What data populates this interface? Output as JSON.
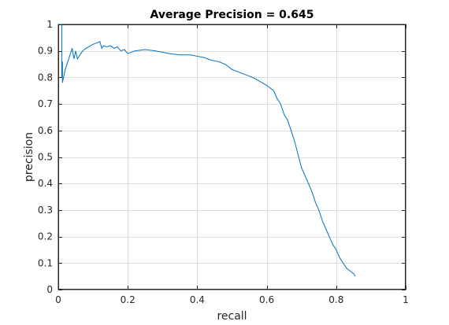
{
  "chart_data": {
    "type": "line",
    "title": "Average Precision = 0.645",
    "xlabel": "recall",
    "ylabel": "precision",
    "xlim": [
      0,
      1
    ],
    "ylim": [
      0,
      1
    ],
    "xticks": [
      0,
      0.2,
      0.4,
      0.6,
      0.8,
      1
    ],
    "xtick_labels": [
      "0",
      "0.2",
      "0.4",
      "0.6",
      "0.8",
      "1"
    ],
    "yticks": [
      0,
      0.1,
      0.2,
      0.3,
      0.4,
      0.5,
      0.6,
      0.7,
      0.8,
      0.9,
      1
    ],
    "ytick_labels": [
      "0",
      "0.1",
      "0.2",
      "0.3",
      "0.4",
      "0.5",
      "0.6",
      "0.7",
      "0.8",
      "0.9",
      "1"
    ],
    "grid": true,
    "line_color": "#0072bd",
    "series": [
      {
        "x": [
          0.0,
          0.01,
          0.01,
          0.012,
          0.012,
          0.02,
          0.03,
          0.04,
          0.045,
          0.05,
          0.055,
          0.06,
          0.07,
          0.08,
          0.1,
          0.12,
          0.125,
          0.13,
          0.14,
          0.15,
          0.16,
          0.17,
          0.18,
          0.19,
          0.2,
          0.22,
          0.25,
          0.28,
          0.3,
          0.32,
          0.35,
          0.38,
          0.4,
          0.42,
          0.44,
          0.46,
          0.48,
          0.5,
          0.52,
          0.54,
          0.56,
          0.58,
          0.6,
          0.62,
          0.63,
          0.64,
          0.65,
          0.66,
          0.67,
          0.68,
          0.69,
          0.7,
          0.71,
          0.72,
          0.73,
          0.74,
          0.75,
          0.76,
          0.77,
          0.78,
          0.79,
          0.8,
          0.81,
          0.82,
          0.83,
          0.84,
          0.85,
          0.855
        ],
        "y": [
          1.0,
          1.0,
          0.8,
          0.86,
          0.78,
          0.83,
          0.87,
          0.91,
          0.87,
          0.9,
          0.87,
          0.88,
          0.9,
          0.91,
          0.925,
          0.935,
          0.91,
          0.92,
          0.915,
          0.92,
          0.91,
          0.915,
          0.9,
          0.905,
          0.89,
          0.9,
          0.905,
          0.9,
          0.895,
          0.89,
          0.885,
          0.885,
          0.88,
          0.875,
          0.865,
          0.86,
          0.85,
          0.83,
          0.82,
          0.81,
          0.8,
          0.785,
          0.77,
          0.75,
          0.72,
          0.7,
          0.66,
          0.64,
          0.6,
          0.56,
          0.51,
          0.46,
          0.43,
          0.4,
          0.37,
          0.33,
          0.3,
          0.26,
          0.23,
          0.2,
          0.17,
          0.15,
          0.12,
          0.1,
          0.08,
          0.07,
          0.06,
          0.05
        ]
      }
    ]
  }
}
